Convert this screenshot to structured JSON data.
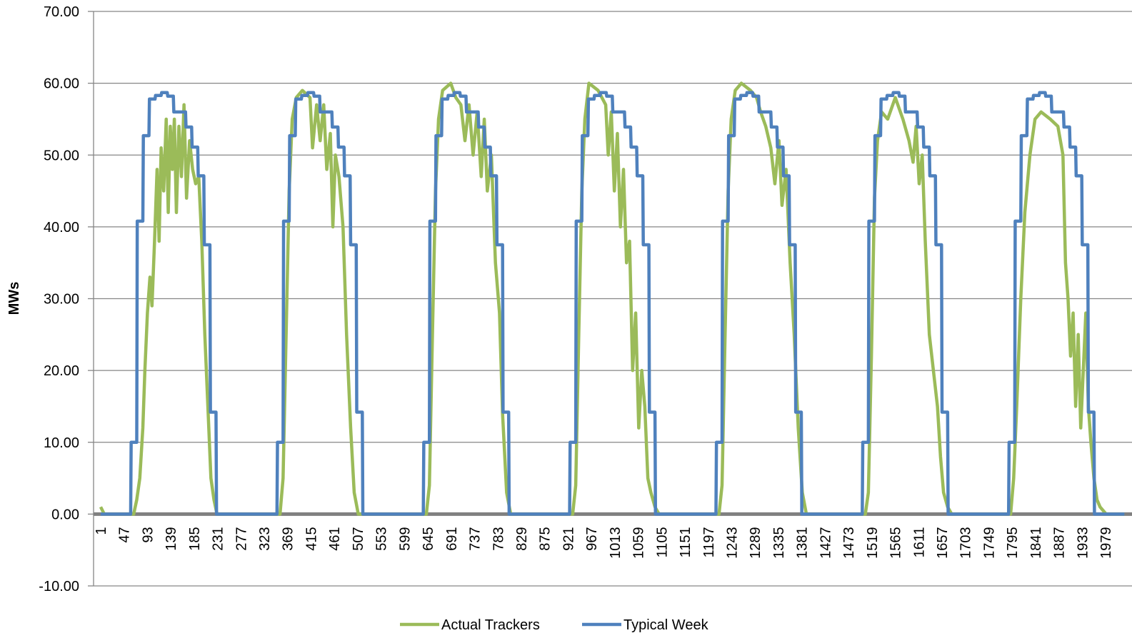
{
  "chart_data": {
    "type": "line",
    "y_label": "MWs",
    "xlim": [
      -13,
      2007
    ],
    "xticks": [
      1,
      47,
      93,
      139,
      185,
      231,
      277,
      323,
      369,
      415,
      461,
      507,
      553,
      599,
      645,
      691,
      737,
      783,
      829,
      875,
      921,
      967,
      1013,
      1059,
      1105,
      1151,
      1197,
      1243,
      1289,
      1335,
      1381,
      1427,
      1473,
      1519,
      1565,
      1611,
      1657,
      1703,
      1749,
      1795,
      1841,
      1887,
      1933,
      1979
    ],
    "ylim": [
      -10,
      70
    ],
    "yticks": [
      {
        "value": -10,
        "label": "-10.00"
      },
      {
        "value": 0,
        "label": "0.00"
      },
      {
        "value": 10,
        "label": "10.00"
      },
      {
        "value": 20,
        "label": "20.00"
      },
      {
        "value": 30,
        "label": "30.00"
      },
      {
        "value": 40,
        "label": "40.00"
      },
      {
        "value": 50,
        "label": "50.00"
      },
      {
        "value": 60,
        "label": "60.00"
      },
      {
        "value": 70,
        "label": "70.00"
      }
    ],
    "grid": true,
    "legend": "bottom",
    "series": [
      {
        "name": "Actual Trackers",
        "color": "#9bbb59",
        "x": [
          1,
          8,
          66,
          72,
          78,
          84,
          88,
          93,
          98,
          102,
          107,
          112,
          116,
          120,
          125,
          130,
          134,
          138,
          142,
          146,
          150,
          155,
          160,
          165,
          170,
          176,
          182,
          188,
          194,
          200,
          206,
          212,
          218,
          224,
          230,
          354,
          360,
          366,
          372,
          378,
          386,
          398,
          413,
          418,
          426,
          433,
          440,
          446,
          453,
          458,
          463,
          470,
          478,
          485,
          493,
          500,
          508,
          642,
          648,
          654,
          660,
          666,
          674,
          690,
          700,
          710,
          718,
          726,
          734,
          742,
          750,
          756,
          762,
          770,
          778,
          786,
          792,
          800,
          808,
          930,
          936,
          942,
          948,
          954,
          962,
          980,
          995,
          1000,
          1006,
          1012,
          1018,
          1024,
          1030,
          1036,
          1042,
          1048,
          1054,
          1060,
          1066,
          1072,
          1078,
          1084,
          1092,
          1100,
          1218,
          1224,
          1230,
          1236,
          1242,
          1250,
          1262,
          1280,
          1292,
          1300,
          1310,
          1320,
          1328,
          1336,
          1342,
          1350,
          1358,
          1366,
          1374,
          1382,
          1390,
          1506,
          1512,
          1518,
          1524,
          1530,
          1538,
          1550,
          1565,
          1580,
          1592,
          1600,
          1606,
          1612,
          1618,
          1624,
          1632,
          1640,
          1648,
          1654,
          1660,
          1668,
          1676,
          1792,
          1798,
          1804,
          1812,
          1820,
          1830,
          1840,
          1852,
          1870,
          1885,
          1895,
          1900,
          1905,
          1910,
          1915,
          1920,
          1925,
          1930,
          1935,
          1940,
          1945,
          1950,
          1956,
          1962,
          1968,
          1980,
          2016
        ],
        "values": [
          1,
          0,
          0,
          2,
          5,
          12,
          20,
          28,
          33,
          29,
          38,
          48,
          38,
          51,
          45,
          55,
          42,
          54,
          48,
          55,
          42,
          54,
          47,
          57,
          44,
          52,
          48,
          46,
          47,
          38,
          25,
          15,
          5,
          2,
          0,
          0,
          5,
          25,
          45,
          55,
          58,
          59,
          58,
          51,
          57,
          52,
          57,
          48,
          53,
          40,
          50,
          47,
          40,
          25,
          12,
          3,
          0,
          0,
          4,
          25,
          45,
          55,
          59,
          60,
          58,
          57,
          52,
          57,
          50,
          56,
          47,
          55,
          45,
          50,
          35,
          28,
          14,
          3,
          0,
          0,
          4,
          25,
          45,
          55,
          60,
          59,
          57,
          50,
          56,
          45,
          53,
          40,
          48,
          35,
          38,
          20,
          28,
          12,
          20,
          15,
          5,
          3,
          1,
          0,
          0,
          4,
          25,
          45,
          55,
          59,
          60,
          59,
          58,
          56,
          54,
          51,
          46,
          52,
          43,
          48,
          35,
          25,
          12,
          3,
          0,
          0,
          3,
          22,
          44,
          52,
          56,
          55,
          58,
          55,
          52,
          49,
          54,
          46,
          50,
          38,
          25,
          20,
          15,
          8,
          3,
          1,
          0,
          0,
          5,
          15,
          30,
          42,
          50,
          55,
          56,
          55,
          54,
          50,
          35,
          30,
          22,
          28,
          15,
          25,
          12,
          20,
          28,
          15,
          10,
          5,
          2,
          1,
          0,
          0
        ]
      },
      {
        "name": "Typical Week",
        "color": "#4f81bd",
        "x": [
          1,
          60,
          61,
          72,
          73,
          84,
          85,
          96,
          97,
          108,
          109,
          120,
          121,
          132,
          133,
          144,
          145,
          168,
          169,
          180,
          181,
          192,
          193,
          204,
          205,
          216,
          217,
          228,
          229,
          348,
          349,
          360,
          361,
          372,
          373,
          384,
          385,
          396,
          397,
          408,
          409,
          420,
          421,
          432,
          433,
          456,
          457,
          468,
          469,
          480,
          481,
          492,
          493,
          504,
          505,
          516,
          517,
          636,
          637,
          648,
          649,
          660,
          661,
          672,
          673,
          684,
          685,
          696,
          697,
          708,
          709,
          720,
          721,
          744,
          745,
          756,
          757,
          768,
          769,
          780,
          781,
          792,
          793,
          804,
          805,
          924,
          925,
          936,
          937,
          948,
          949,
          960,
          961,
          972,
          973,
          984,
          985,
          996,
          997,
          1008,
          1009,
          1032,
          1033,
          1044,
          1045,
          1056,
          1057,
          1068,
          1069,
          1080,
          1081,
          1092,
          1093,
          1212,
          1213,
          1224,
          1225,
          1236,
          1237,
          1248,
          1249,
          1260,
          1261,
          1272,
          1273,
          1284,
          1285,
          1296,
          1297,
          1320,
          1321,
          1332,
          1333,
          1344,
          1345,
          1356,
          1357,
          1368,
          1369,
          1380,
          1381,
          1500,
          1501,
          1512,
          1513,
          1524,
          1525,
          1536,
          1537,
          1548,
          1549,
          1560,
          1561,
          1572,
          1573,
          1584,
          1585,
          1608,
          1609,
          1620,
          1621,
          1632,
          1633,
          1644,
          1645,
          1656,
          1657,
          1668,
          1669,
          1788,
          1789,
          1800,
          1801,
          1812,
          1813,
          1824,
          1825,
          1836,
          1837,
          1848,
          1849,
          1860,
          1861,
          1872,
          1873,
          1896,
          1897,
          1908,
          1909,
          1920,
          1921,
          1932,
          1933,
          1944,
          1945,
          1956,
          1957,
          2016
        ],
        "values": [
          0,
          0,
          10,
          10,
          40.8,
          40.8,
          52.7,
          52.7,
          57.8,
          57.8,
          58.3,
          58.3,
          58.7,
          58.7,
          58.2,
          58.2,
          56,
          56,
          53.9,
          53.9,
          51.1,
          51.1,
          47.1,
          47.1,
          37.5,
          37.5,
          14.2,
          14.2,
          0,
          0,
          10,
          10,
          40.8,
          40.8,
          52.7,
          52.7,
          57.8,
          57.8,
          58.3,
          58.3,
          58.7,
          58.7,
          58.2,
          58.2,
          56,
          56,
          53.9,
          53.9,
          51.1,
          51.1,
          47.1,
          47.1,
          37.5,
          37.5,
          14.2,
          14.2,
          0,
          0,
          10,
          10,
          40.8,
          40.8,
          52.7,
          52.7,
          57.8,
          57.8,
          58.3,
          58.3,
          58.7,
          58.7,
          58.2,
          58.2,
          56,
          56,
          53.9,
          53.9,
          51.1,
          51.1,
          47.1,
          47.1,
          37.5,
          37.5,
          14.2,
          14.2,
          0,
          0,
          10,
          10,
          40.8,
          40.8,
          52.7,
          52.7,
          57.8,
          57.8,
          58.3,
          58.3,
          58.7,
          58.7,
          58.2,
          58.2,
          56,
          56,
          53.9,
          53.9,
          51.1,
          51.1,
          47.1,
          47.1,
          37.5,
          37.5,
          14.2,
          14.2,
          0,
          0,
          10,
          10,
          40.8,
          40.8,
          52.7,
          52.7,
          57.8,
          57.8,
          58.3,
          58.3,
          58.7,
          58.7,
          58.2,
          58.2,
          56,
          56,
          53.9,
          53.9,
          51.1,
          51.1,
          47.1,
          47.1,
          37.5,
          37.5,
          14.2,
          14.2,
          0,
          0,
          10,
          10,
          40.8,
          40.8,
          52.7,
          52.7,
          57.8,
          57.8,
          58.3,
          58.3,
          58.7,
          58.7,
          58.2,
          58.2,
          56,
          56,
          53.9,
          53.9,
          51.1,
          51.1,
          47.1,
          47.1,
          37.5,
          37.5,
          14.2,
          14.2,
          0,
          0,
          10,
          10,
          40.8,
          40.8,
          52.7,
          52.7,
          57.8,
          57.8,
          58.3,
          58.3,
          58.7,
          58.7,
          58.2,
          58.2,
          56,
          56,
          53.9,
          53.9,
          51.1,
          51.1,
          47.1,
          47.1,
          37.5,
          37.5,
          14.2,
          14.2,
          0,
          0
        ]
      }
    ]
  }
}
